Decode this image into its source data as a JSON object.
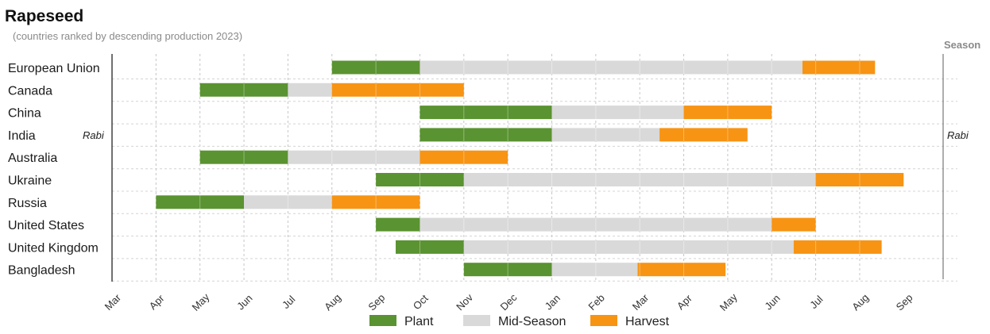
{
  "chart_data": {
    "type": "gantt",
    "title": "Rapeseed",
    "subtitle": "(countries ranked by descending production 2023)",
    "season_header": "Season",
    "season_label": "Rabi",
    "months": [
      "Mar",
      "Apr",
      "May",
      "Jun",
      "Jul",
      "Aug",
      "Sep",
      "Oct",
      "Nov",
      "Dec",
      "Jan",
      "Feb",
      "Mar",
      "Apr",
      "May",
      "Jun",
      "Jul",
      "Aug",
      "Sep"
    ],
    "x_unit": "months since start of March (month ticks at 0..18)",
    "grid": true,
    "legend": {
      "position": "bottom-center",
      "items": [
        {
          "key": "plant",
          "label": "Plant"
        },
        {
          "key": "mid",
          "label": "Mid-Season"
        },
        {
          "key": "harvest",
          "label": "Harvest"
        }
      ]
    },
    "colors": {
      "plant": "#5a9331",
      "mid": "#d9d9d9",
      "harvest": "#f79413"
    },
    "series": [
      {
        "name": "European Union",
        "plant": [
          5.0,
          7.0
        ],
        "mid": [
          7.0,
          15.7
        ],
        "harvest": [
          15.7,
          17.35
        ]
      },
      {
        "name": "Canada",
        "plant": [
          2.0,
          4.0
        ],
        "mid": [
          4.0,
          5.0
        ],
        "harvest": [
          5.0,
          8.0
        ]
      },
      {
        "name": "China",
        "plant": [
          7.0,
          10.0
        ],
        "mid": [
          10.0,
          13.0
        ],
        "harvest": [
          13.0,
          15.0
        ]
      },
      {
        "name": "India",
        "plant": [
          7.0,
          10.0
        ],
        "mid": [
          10.0,
          12.45
        ],
        "harvest": [
          12.45,
          14.45
        ]
      },
      {
        "name": "Australia",
        "plant": [
          2.0,
          4.0
        ],
        "mid": [
          4.0,
          7.0
        ],
        "harvest": [
          7.0,
          9.0
        ]
      },
      {
        "name": "Ukraine",
        "plant": [
          6.0,
          8.0
        ],
        "mid": [
          8.0,
          16.0
        ],
        "harvest": [
          16.0,
          18.0
        ]
      },
      {
        "name": "Russia",
        "plant": [
          1.0,
          3.0
        ],
        "mid": [
          3.0,
          5.0
        ],
        "harvest": [
          5.0,
          7.0
        ]
      },
      {
        "name": "United States",
        "plant": [
          6.0,
          7.0
        ],
        "mid": [
          7.0,
          15.0
        ],
        "harvest": [
          15.0,
          16.0
        ]
      },
      {
        "name": "United Kingdom",
        "plant": [
          6.45,
          8.0
        ],
        "mid": [
          8.0,
          15.5
        ],
        "harvest": [
          15.5,
          17.5
        ]
      },
      {
        "name": "Bangladesh",
        "plant": [
          8.0,
          10.0
        ],
        "mid": [
          10.0,
          11.95
        ],
        "harvest": [
          11.95,
          13.95
        ]
      }
    ]
  }
}
